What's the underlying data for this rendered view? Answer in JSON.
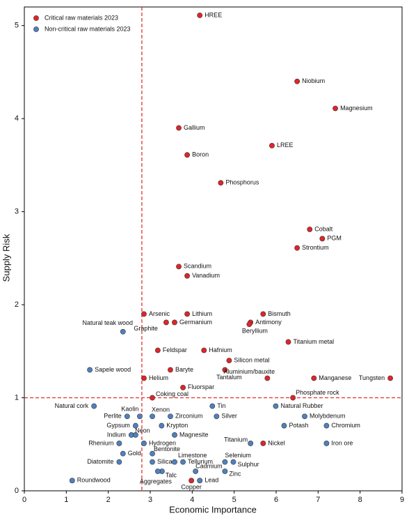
{
  "chart_data": {
    "type": "scatter",
    "xlabel": "Economic Importance",
    "ylabel": "Supply Risk",
    "xlim": [
      0,
      9
    ],
    "ylim": [
      0,
      5.2
    ],
    "xticks": [
      0,
      1,
      2,
      3,
      4,
      5,
      6,
      7,
      8,
      9
    ],
    "yticks": [
      0,
      1,
      2,
      3,
      4,
      5
    ],
    "reference_lines": {
      "x": 2.8,
      "y": 1,
      "color": "#e02020"
    },
    "legend": "upper left",
    "series": [
      {
        "name": "Critical raw materials 2023",
        "color": "#e0252a",
        "labels": [
          "HREE",
          "Niobium",
          "Magnesium",
          "Gallium",
          "Boron",
          "LREE",
          "Phosphorus",
          "Cobalt",
          "PGM",
          "Strontium",
          "Scandium",
          "Vanadium",
          "Arsenic",
          "Lithium",
          "Bismuth",
          "Graphite",
          "Germanium",
          "Antimony",
          "Beryllium",
          "Titanium metal",
          "Feldspar",
          "Hafnium",
          "Silicon metal",
          "Baryte",
          "Tantalum",
          "Aluminium/bauxite",
          "Manganese",
          "Tungsten",
          "Helium",
          "Fluorspar",
          "Coking coal",
          "Phosphate rock",
          "Nickel",
          "Copper"
        ],
        "x": [
          4.18,
          6.5,
          7.41,
          3.68,
          3.88,
          5.9,
          4.68,
          6.8,
          7.1,
          6.5,
          3.68,
          3.88,
          2.85,
          3.88,
          5.69,
          3.38,
          3.58,
          5.39,
          5.36,
          6.29,
          3.18,
          4.28,
          4.88,
          3.48,
          4.78,
          5.79,
          6.9,
          8.72,
          2.85,
          3.78,
          3.05,
          6.4,
          5.69,
          3.98
        ],
        "values": [
          5.11,
          4.4,
          4.11,
          3.9,
          3.61,
          3.71,
          3.31,
          2.81,
          2.71,
          2.61,
          2.41,
          2.31,
          1.9,
          1.9,
          1.9,
          1.81,
          1.81,
          1.81,
          1.79,
          1.6,
          1.51,
          1.51,
          1.4,
          1.3,
          1.3,
          1.21,
          1.21,
          1.21,
          1.21,
          1.11,
          1.0,
          1.0,
          0.51,
          0.11
        ]
      },
      {
        "name": "Non-critical raw materials 2023",
        "color": "#4f81bd",
        "labels": [
          "Natural teak wood",
          "Sapele wood",
          "Natural cork",
          "Kaolin",
          "Perlite",
          "Xenon",
          "Zirconium",
          "Tin",
          "Silver",
          "Natural Rubber",
          "Molybdenum",
          "Gypsum",
          "Krypton",
          "Potash",
          "Chromium",
          "Indium",
          "Neon",
          "Magnesite",
          "Rhenium",
          "Hydrogen",
          "Titanium",
          "Iron ore",
          "Gold",
          "Bentonite",
          "Diatomite",
          "Silica",
          "Limestone",
          "Tellurium",
          "Selenium",
          "Sulphur",
          "Cadmium",
          "Zinc",
          "Talc",
          "Aggregates",
          "Lead",
          "Roundwood"
        ],
        "x": [
          2.35,
          1.56,
          1.66,
          2.75,
          2.45,
          3.05,
          3.48,
          4.48,
          4.58,
          5.99,
          6.68,
          2.65,
          3.27,
          6.19,
          7.2,
          2.55,
          2.65,
          3.58,
          2.26,
          2.85,
          5.39,
          7.2,
          2.35,
          3.05,
          2.26,
          3.05,
          3.58,
          3.78,
          4.78,
          4.98,
          4.08,
          4.78,
          3.28,
          3.18,
          4.18,
          1.14
        ],
        "values": [
          1.71,
          1.3,
          0.91,
          0.8,
          0.8,
          0.8,
          0.8,
          0.91,
          0.8,
          0.91,
          0.8,
          0.7,
          0.7,
          0.7,
          0.7,
          0.6,
          0.6,
          0.6,
          0.51,
          0.51,
          0.51,
          0.51,
          0.4,
          0.4,
          0.31,
          0.31,
          0.31,
          0.31,
          0.31,
          0.31,
          0.21,
          0.21,
          0.21,
          0.21,
          0.11,
          0.11
        ]
      }
    ]
  }
}
